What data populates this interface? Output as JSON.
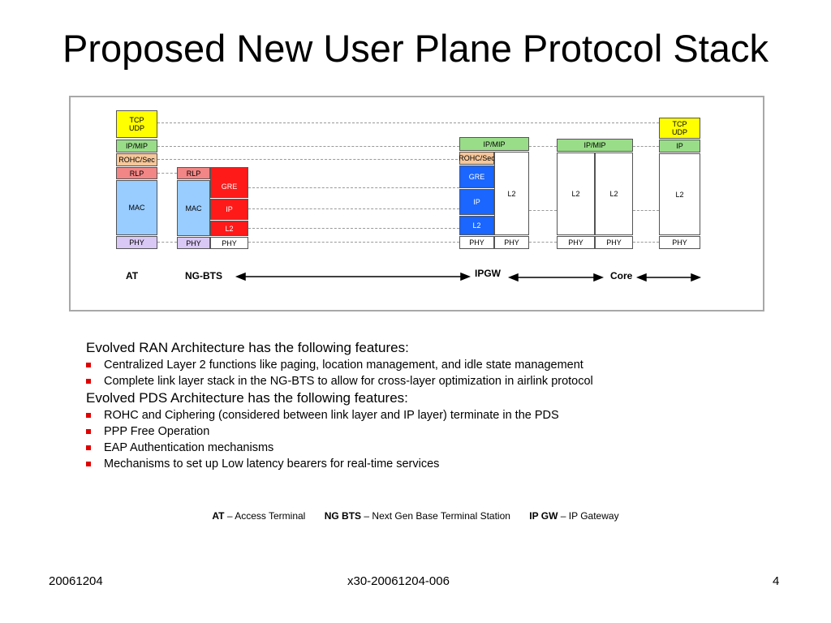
{
  "title": "Proposed New User Plane Protocol Stack",
  "diagram": {
    "at_stack": {
      "tcp_udp": "TCP\nUDP",
      "ip_mip": "IP/MIP",
      "rohc_sec": "ROHC/Sec",
      "rlp": "RLP",
      "mac": "MAC",
      "phy": "PHY"
    },
    "ngbts_stack": {
      "rlp": "RLP",
      "mac": "MAC",
      "phy_left": "PHY",
      "gre": "GRE",
      "ip": "IP",
      "l2": "L2",
      "phy_right": "PHY"
    },
    "ipgw_stack": {
      "ip_mip": "IP/MIP",
      "rohc_sec": "ROHC/Sec",
      "gre": "GRE",
      "ip": "IP",
      "l2": "L2",
      "l2_right": "L2",
      "phy_left": "PHY",
      "phy_right": "PHY"
    },
    "core_stack": {
      "ip_mip": "IP/MIP",
      "l2_left": "L2",
      "l2_right": "L2",
      "phy_left": "PHY",
      "phy_right": "PHY"
    },
    "server_stack": {
      "tcp_udp": "TCP\nUDP",
      "ip": "IP",
      "l2": "L2",
      "phy": "PHY"
    },
    "labels": {
      "at": "AT",
      "ngbts": "NG-BTS",
      "ipgw": "IPGW",
      "core": "Core"
    },
    "colors": {
      "yellow": "#ffff00",
      "green": "#99dd88",
      "tan": "#f6c79a",
      "pink": "#f28585",
      "blue": "#99ccff",
      "lavender": "#d9c8f5",
      "red": "#ff1a1a",
      "bright_blue": "#1a66ff",
      "bullet": "#e00000"
    }
  },
  "features": {
    "ran_heading": "Evolved RAN Architecture has the following features:",
    "ran_bullets": [
      "Centralized Layer 2 functions like paging, location management, and idle state management",
      "Complete link layer stack in the NG-BTS to allow for cross-layer optimization in airlink protocol"
    ],
    "pds_heading": "Evolved PDS Architecture has the following features:",
    "pds_bullets": [
      "ROHC and Ciphering (considered between link layer and IP layer) terminate in the PDS",
      "PPP Free Operation",
      "EAP Authentication mechanisms",
      "Mechanisms to set up Low latency bearers for real-time services"
    ]
  },
  "legend": {
    "at_abbr": "AT",
    "at_text": "– Access Terminal",
    "ngbts_abbr": "NG BTS",
    "ngbts_text": "– Next Gen Base Terminal Station",
    "ipgw_abbr": "IP GW",
    "ipgw_text": "– IP Gateway"
  },
  "footer": {
    "date": "20061204",
    "doc_id": "x30-20061204-006",
    "page": "4"
  }
}
